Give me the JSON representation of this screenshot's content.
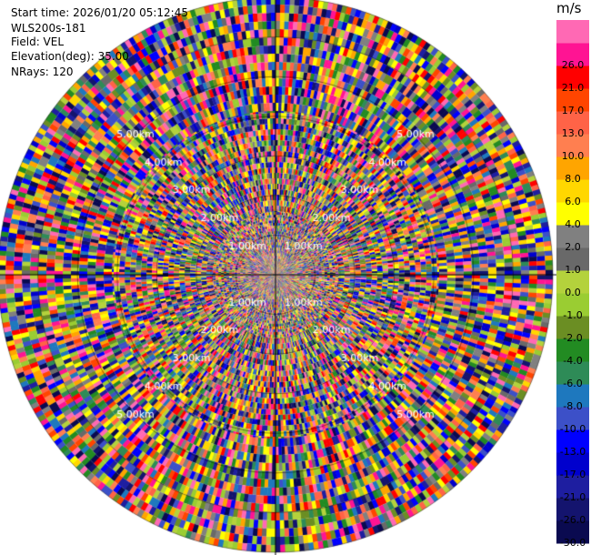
{
  "info": {
    "start_time": "Start time: 2026/01/20 05:12:45",
    "instrument": "WLS200s-181",
    "field": "Field: VEL",
    "elevation": "Elevation(deg): 35.00",
    "nrays": "NRays: 120"
  },
  "chart_data": {
    "type": "heatmap",
    "projection": "polar-ppi",
    "field": "VEL",
    "units": "m/s",
    "elevation_deg": 35.0,
    "n_rays": 120,
    "range_km": [
      0,
      7
    ],
    "range_ring_labels": [
      "1.00km",
      "2.00km",
      "3.00km",
      "4.00km",
      "5.00km"
    ],
    "colorbar": {
      "title": "m/s",
      "ticks": [
        "-30.0",
        "-26.0",
        "-21.0",
        "-17.0",
        "-13.0",
        "-10.0",
        "-8.0",
        "-6.0",
        "-4.0",
        "-2.0",
        "-1.0",
        "0.0",
        "1.0",
        "2.0",
        "4.0",
        "6.0",
        "8.0",
        "10.0",
        "13.0",
        "17.0",
        "21.0",
        "26.0"
      ],
      "colors": [
        "#0a0a50",
        "#14146e",
        "#1e1ea0",
        "#0000cd",
        "#0000ff",
        "#3c50c8",
        "#1e78be",
        "#2e8b57",
        "#228b22",
        "#6b8e23",
        "#9acd32",
        "#b4d23c",
        "#696969",
        "#808080",
        "#ffff00",
        "#ffd700",
        "#ffa500",
        "#ff7f50",
        "#ff6347",
        "#ff4500",
        "#ff0000",
        "#ff1493",
        "#ff69b4"
      ]
    }
  }
}
